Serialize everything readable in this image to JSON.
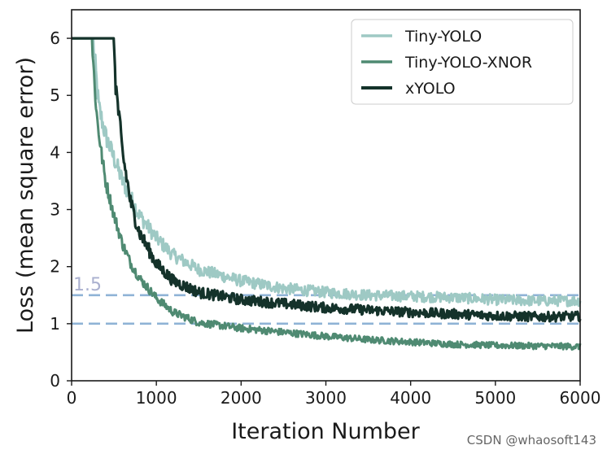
{
  "chart_data": {
    "type": "line",
    "xlabel": "Iteration Number",
    "ylabel": "Loss (mean square error)",
    "xlim": [
      0,
      6000
    ],
    "ylim": [
      0,
      6.5
    ],
    "xticks": [
      0,
      1000,
      2000,
      3000,
      4000,
      5000,
      6000
    ],
    "yticks": [
      0,
      1,
      2,
      3,
      4,
      5,
      6
    ],
    "grid": false,
    "legend_position": "top-right",
    "series": [
      {
        "name": "Tiny-YOLO",
        "color": "#9ec9c4",
        "noise": 0.05,
        "x": [
          0,
          250,
          280,
          320,
          400,
          500,
          600,
          700,
          800,
          1000,
          1200,
          1500,
          2000,
          2500,
          3000,
          3500,
          4000,
          4500,
          5000,
          5500,
          6000
        ],
        "y": [
          6.0,
          6.0,
          5.5,
          4.8,
          4.3,
          3.9,
          3.5,
          3.2,
          2.9,
          2.5,
          2.2,
          1.95,
          1.75,
          1.62,
          1.55,
          1.5,
          1.48,
          1.46,
          1.42,
          1.4,
          1.4
        ]
      },
      {
        "name": "Tiny-YOLO-XNOR",
        "color": "#4f8a72",
        "noise": 0.04,
        "x": [
          0,
          240,
          270,
          300,
          350,
          400,
          500,
          600,
          700,
          800,
          1000,
          1200,
          1500,
          2000,
          2500,
          3000,
          3500,
          4000,
          4500,
          5000,
          5500,
          6000
        ],
        "y": [
          6.0,
          6.0,
          5.2,
          4.6,
          4.0,
          3.5,
          2.9,
          2.4,
          2.05,
          1.8,
          1.45,
          1.2,
          1.02,
          0.92,
          0.85,
          0.78,
          0.72,
          0.68,
          0.64,
          0.62,
          0.61,
          0.6
        ]
      },
      {
        "name": "xYOLO",
        "color": "#14322a",
        "noise": 0.05,
        "x": [
          0,
          500,
          520,
          560,
          600,
          700,
          800,
          1000,
          1200,
          1500,
          2000,
          2500,
          3000,
          3500,
          4000,
          4500,
          5000,
          5500,
          6000
        ],
        "y": [
          6.0,
          6.0,
          5.2,
          4.6,
          4.0,
          3.1,
          2.6,
          2.05,
          1.75,
          1.55,
          1.42,
          1.35,
          1.28,
          1.24,
          1.2,
          1.17,
          1.14,
          1.12,
          1.13
        ]
      }
    ],
    "reference_lines": [
      {
        "y": 1.5,
        "color": "#8fb3d6",
        "style": "dashed"
      },
      {
        "y": 1.0,
        "color": "#8fb3d6",
        "style": "dashed"
      }
    ],
    "annotations": [
      {
        "text": "1.5",
        "x": 0,
        "y": 1.5,
        "color": "#aab0cf"
      }
    ]
  },
  "watermark": "CSDN @whaosoft143"
}
